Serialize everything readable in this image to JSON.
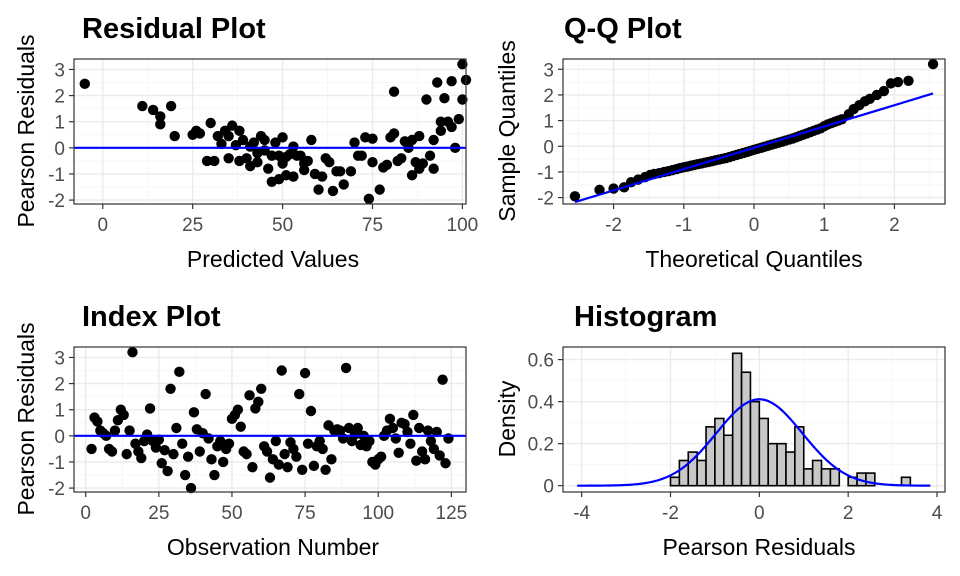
{
  "chart_data": [
    {
      "type": "scatter",
      "title": "Residual Plot",
      "xlabel": "Predicted Values",
      "ylabel": "Pearson Residuals",
      "xlim": [
        -8,
        101
      ],
      "ylim": [
        -2.15,
        3.4
      ],
      "xticks": [
        0,
        25,
        50,
        75,
        100
      ],
      "yticks": [
        -2,
        -1,
        0,
        1,
        2,
        3
      ],
      "grid": true,
      "reference_line": {
        "type": "hline",
        "y": 0,
        "color": "#0000ff"
      },
      "points": [
        [
          -5,
          2.45
        ],
        [
          11,
          1.6
        ],
        [
          14,
          1.45
        ],
        [
          16,
          0.9
        ],
        [
          16,
          1.2
        ],
        [
          19,
          1.6
        ],
        [
          20,
          0.45
        ],
        [
          25,
          0.5
        ],
        [
          26,
          0.65
        ],
        [
          27,
          0.55
        ],
        [
          29,
          -0.5
        ],
        [
          30,
          0.95
        ],
        [
          31,
          -0.5
        ],
        [
          32,
          0.45
        ],
        [
          33,
          0.15
        ],
        [
          34,
          0.65
        ],
        [
          35,
          0.45
        ],
        [
          35,
          -0.4
        ],
        [
          36,
          0.85
        ],
        [
          37,
          0.1
        ],
        [
          38,
          0.65
        ],
        [
          38,
          -0.5
        ],
        [
          39,
          0.3
        ],
        [
          40,
          -0.4
        ],
        [
          41,
          -0.7
        ],
        [
          41,
          0.05
        ],
        [
          42,
          0.2
        ],
        [
          43,
          -0.2
        ],
        [
          43,
          -0.55
        ],
        [
          44,
          0.45
        ],
        [
          45,
          0.3
        ],
        [
          45,
          -0.1
        ],
        [
          46,
          -0.8
        ],
        [
          47,
          -1.3
        ],
        [
          47,
          -0.3
        ],
        [
          48,
          0.2
        ],
        [
          49,
          -1.2
        ],
        [
          49,
          -0.3
        ],
        [
          50,
          0.4
        ],
        [
          50,
          -0.6
        ],
        [
          51,
          -0.35
        ],
        [
          51,
          -1.05
        ],
        [
          52,
          -0.25
        ],
        [
          53,
          0.05
        ],
        [
          53,
          -1.1
        ],
        [
          54,
          -0.3
        ],
        [
          55,
          -0.3
        ],
        [
          56,
          -0.6
        ],
        [
          56,
          -0.85
        ],
        [
          57,
          -0.5
        ],
        [
          58,
          0.3
        ],
        [
          59,
          -1.0
        ],
        [
          60,
          -1.6
        ],
        [
          61,
          -1.1
        ],
        [
          62,
          -0.4
        ],
        [
          63,
          -0.55
        ],
        [
          64,
          -1.65
        ],
        [
          65,
          -0.9
        ],
        [
          66,
          -0.9
        ],
        [
          67,
          -1.4
        ],
        [
          69,
          -0.9
        ],
        [
          70,
          0.2
        ],
        [
          71,
          -0.3
        ],
        [
          72,
          -0.3
        ],
        [
          73,
          0.4
        ],
        [
          74,
          -1.95
        ],
        [
          75,
          -0.55
        ],
        [
          75,
          0.35
        ],
        [
          77,
          -1.6
        ],
        [
          78,
          -0.75
        ],
        [
          79,
          -0.65
        ],
        [
          80,
          0.4
        ],
        [
          81,
          2.15
        ],
        [
          81,
          0.55
        ],
        [
          82,
          -0.5
        ],
        [
          83,
          -0.4
        ],
        [
          84,
          0.25
        ],
        [
          85,
          0.0
        ],
        [
          86,
          0.3
        ],
        [
          86,
          -1.05
        ],
        [
          87,
          -0.55
        ],
        [
          88,
          0.45
        ],
        [
          88,
          -0.8
        ],
        [
          89,
          -0.6
        ],
        [
          90,
          1.85
        ],
        [
          91,
          -0.3
        ],
        [
          92,
          0.3
        ],
        [
          92,
          -0.8
        ],
        [
          93,
          2.5
        ],
        [
          94,
          1.0
        ],
        [
          94,
          0.65
        ],
        [
          95,
          1.9
        ],
        [
          96,
          1.0
        ],
        [
          97,
          2.55
        ],
        [
          97,
          0.8
        ],
        [
          98,
          0.0
        ],
        [
          99,
          1.1
        ],
        [
          100,
          3.2
        ],
        [
          101,
          2.6
        ],
        [
          100,
          1.85
        ]
      ]
    },
    {
      "type": "scatter",
      "title": "Q-Q Plot",
      "xlabel": "Theoretical Quantiles",
      "ylabel": "Sample Quantiles",
      "xlim": [
        -2.72,
        2.72
      ],
      "ylim": [
        -2.25,
        3.4
      ],
      "xticks": [
        -2,
        -1,
        0,
        1,
        2
      ],
      "yticks": [
        -2,
        -1,
        0,
        1,
        2,
        3
      ],
      "grid": true,
      "reference_line": {
        "type": "abline",
        "intercept": -0.06,
        "slope": 0.83,
        "x_from": -2.55,
        "x_to": 2.55,
        "color": "#0000ff"
      },
      "points": [
        [
          -2.55,
          -1.95
        ],
        [
          -2.2,
          -1.7
        ],
        [
          -2.0,
          -1.65
        ],
        [
          -1.85,
          -1.6
        ],
        [
          -1.75,
          -1.4
        ],
        [
          -1.65,
          -1.3
        ],
        [
          -1.55,
          -1.2
        ],
        [
          -1.48,
          -1.12
        ],
        [
          -1.42,
          -1.08
        ],
        [
          -1.35,
          -1.05
        ],
        [
          -1.28,
          -1.0
        ],
        [
          -1.22,
          -0.97
        ],
        [
          -1.16,
          -0.93
        ],
        [
          -1.1,
          -0.89
        ],
        [
          -1.05,
          -0.85
        ],
        [
          -1.0,
          -0.82
        ],
        [
          -0.95,
          -0.79
        ],
        [
          -0.9,
          -0.76
        ],
        [
          -0.85,
          -0.73
        ],
        [
          -0.8,
          -0.7
        ],
        [
          -0.75,
          -0.67
        ],
        [
          -0.7,
          -0.64
        ],
        [
          -0.65,
          -0.61
        ],
        [
          -0.6,
          -0.58
        ],
        [
          -0.55,
          -0.55
        ],
        [
          -0.5,
          -0.52
        ],
        [
          -0.45,
          -0.49
        ],
        [
          -0.4,
          -0.46
        ],
        [
          -0.35,
          -0.42
        ],
        [
          -0.3,
          -0.38
        ],
        [
          -0.25,
          -0.34
        ],
        [
          -0.2,
          -0.3
        ],
        [
          -0.15,
          -0.26
        ],
        [
          -0.1,
          -0.22
        ],
        [
          -0.05,
          -0.18
        ],
        [
          0.0,
          -0.14
        ],
        [
          0.05,
          -0.1
        ],
        [
          0.1,
          -0.06
        ],
        [
          0.15,
          -0.02
        ],
        [
          0.2,
          0.02
        ],
        [
          0.25,
          0.06
        ],
        [
          0.3,
          0.1
        ],
        [
          0.35,
          0.14
        ],
        [
          0.4,
          0.18
        ],
        [
          0.45,
          0.22
        ],
        [
          0.5,
          0.26
        ],
        [
          0.55,
          0.3
        ],
        [
          0.6,
          0.35
        ],
        [
          0.65,
          0.4
        ],
        [
          0.7,
          0.45
        ],
        [
          0.75,
          0.5
        ],
        [
          0.8,
          0.55
        ],
        [
          0.85,
          0.6
        ],
        [
          0.9,
          0.65
        ],
        [
          0.95,
          0.7
        ],
        [
          1.0,
          0.78
        ],
        [
          1.05,
          0.85
        ],
        [
          1.1,
          0.9
        ],
        [
          1.15,
          0.95
        ],
        [
          1.2,
          1.0
        ],
        [
          1.25,
          1.05
        ],
        [
          1.35,
          1.25
        ],
        [
          1.42,
          1.45
        ],
        [
          1.5,
          1.6
        ],
        [
          1.58,
          1.75
        ],
        [
          1.65,
          1.85
        ],
        [
          1.75,
          2.0
        ],
        [
          1.85,
          2.15
        ],
        [
          1.95,
          2.45
        ],
        [
          2.05,
          2.5
        ],
        [
          2.2,
          2.55
        ],
        [
          2.55,
          3.2
        ]
      ]
    },
    {
      "type": "scatter",
      "title": "Index Plot",
      "xlabel": "Observation Number",
      "ylabel": "Pearson Residuals",
      "xlim": [
        -4,
        130
      ],
      "ylim": [
        -2.15,
        3.4
      ],
      "xticks": [
        0,
        25,
        50,
        75,
        100,
        125
      ],
      "yticks": [
        -2,
        -1,
        0,
        1,
        2,
        3
      ],
      "grid": true,
      "reference_line": {
        "type": "hline",
        "y": 0,
        "color": "#0000ff"
      },
      "points": [
        [
          2,
          -0.5
        ],
        [
          3,
          0.7
        ],
        [
          4,
          0.55
        ],
        [
          5,
          0.2
        ],
        [
          6,
          0.1
        ],
        [
          7,
          0.0
        ],
        [
          8,
          -0.5
        ],
        [
          9,
          -0.6
        ],
        [
          10,
          0.2
        ],
        [
          11,
          0.6
        ],
        [
          12,
          1.0
        ],
        [
          13,
          0.8
        ],
        [
          14,
          -0.7
        ],
        [
          15,
          0.2
        ],
        [
          16,
          3.2
        ],
        [
          17,
          -0.3
        ],
        [
          18,
          -0.6
        ],
        [
          19,
          -0.85
        ],
        [
          20,
          -0.2
        ],
        [
          21,
          0.05
        ],
        [
          22,
          1.05
        ],
        [
          23,
          -0.2
        ],
        [
          24,
          -0.45
        ],
        [
          25,
          -0.15
        ],
        [
          26,
          -1.05
        ],
        [
          27,
          -0.55
        ],
        [
          28,
          -1.35
        ],
        [
          29,
          1.8
        ],
        [
          30,
          -0.7
        ],
        [
          31,
          0.3
        ],
        [
          32,
          2.45
        ],
        [
          33,
          -0.3
        ],
        [
          34,
          -1.5
        ],
        [
          35,
          -0.8
        ],
        [
          36,
          -2.0
        ],
        [
          37,
          0.9
        ],
        [
          38,
          0.25
        ],
        [
          39,
          -0.6
        ],
        [
          40,
          0.1
        ],
        [
          41,
          1.6
        ],
        [
          42,
          -0.1
        ],
        [
          43,
          -0.9
        ],
        [
          44,
          -1.5
        ],
        [
          45,
          -0.4
        ],
        [
          46,
          -0.2
        ],
        [
          47,
          -1.0
        ],
        [
          48,
          -0.5
        ],
        [
          49,
          -0.3
        ],
        [
          50,
          0.65
        ],
        [
          51,
          0.8
        ],
        [
          52,
          1.0
        ],
        [
          53,
          0.35
        ],
        [
          54,
          -0.6
        ],
        [
          55,
          -0.7
        ],
        [
          56,
          1.55
        ],
        [
          57,
          -1.2
        ],
        [
          58,
          1.05
        ],
        [
          59,
          1.3
        ],
        [
          60,
          1.8
        ],
        [
          61,
          -0.4
        ],
        [
          62,
          -0.6
        ],
        [
          63,
          -1.6
        ],
        [
          64,
          -0.9
        ],
        [
          65,
          -0.2
        ],
        [
          66,
          -1.1
        ],
        [
          67,
          2.5
        ],
        [
          68,
          -0.7
        ],
        [
          69,
          -1.2
        ],
        [
          70,
          -0.25
        ],
        [
          71,
          -0.5
        ],
        [
          72,
          -0.8
        ],
        [
          73,
          1.6
        ],
        [
          74,
          -1.3
        ],
        [
          75,
          2.4
        ],
        [
          76,
          -0.3
        ],
        [
          77,
          0.95
        ],
        [
          78,
          -1.15
        ],
        [
          79,
          -0.4
        ],
        [
          80,
          -0.2
        ],
        [
          81,
          -0.5
        ],
        [
          82,
          -1.3
        ],
        [
          83,
          0.4
        ],
        [
          84,
          -0.9
        ],
        [
          85,
          0.2
        ],
        [
          86,
          0.25
        ],
        [
          87,
          0.2
        ],
        [
          88,
          -0.1
        ],
        [
          89,
          2.6
        ],
        [
          90,
          0.3
        ],
        [
          91,
          -0.2
        ],
        [
          92,
          0.05
        ],
        [
          93,
          0.3
        ],
        [
          94,
          -0.35
        ],
        [
          95,
          0.0
        ],
        [
          96,
          -0.4
        ],
        [
          97,
          -0.2
        ],
        [
          98,
          -1.0
        ],
        [
          99,
          -1.1
        ],
        [
          100,
          -0.9
        ],
        [
          101,
          -0.8
        ],
        [
          102,
          0.0
        ],
        [
          103,
          0.2
        ],
        [
          104,
          0.65
        ],
        [
          105,
          0.3
        ],
        [
          106,
          -0.1
        ],
        [
          107,
          -0.65
        ],
        [
          108,
          0.5
        ],
        [
          109,
          0.45
        ],
        [
          110,
          0.15
        ],
        [
          111,
          -0.3
        ],
        [
          112,
          0.8
        ],
        [
          113,
          -0.95
        ],
        [
          114,
          0.3
        ],
        [
          115,
          -0.6
        ],
        [
          116,
          -0.9
        ],
        [
          117,
          0.2
        ],
        [
          118,
          -0.2
        ],
        [
          119,
          -0.5
        ],
        [
          120,
          0.15
        ],
        [
          121,
          -0.75
        ],
        [
          122,
          2.15
        ],
        [
          123,
          -1.05
        ],
        [
          124,
          -0.1
        ]
      ]
    },
    {
      "type": "bar",
      "subtype": "histogram_with_density",
      "title": "Histogram",
      "xlabel": "Pearson Residuals",
      "ylabel": "Density",
      "xlim": [
        -4.42,
        4.18
      ],
      "ylim": [
        -0.03,
        0.66
      ],
      "xticks": [
        -4,
        -2,
        0,
        2,
        4
      ],
      "yticks": [
        0.0,
        0.2,
        0.4,
        0.6
      ],
      "grid": true,
      "bin_width": 0.2,
      "bins": [
        [
          -2.0,
          -1.8,
          0.04
        ],
        [
          -1.8,
          -1.6,
          0.12
        ],
        [
          -1.6,
          -1.4,
          0.16
        ],
        [
          -1.4,
          -1.2,
          0.12
        ],
        [
          -1.2,
          -1.0,
          0.28
        ],
        [
          -1.0,
          -0.8,
          0.32
        ],
        [
          -0.8,
          -0.6,
          0.24
        ],
        [
          -0.6,
          -0.4,
          0.63
        ],
        [
          -0.4,
          -0.2,
          0.54
        ],
        [
          -0.2,
          0.0,
          0.4
        ],
        [
          0.0,
          0.2,
          0.32
        ],
        [
          0.2,
          0.4,
          0.2
        ],
        [
          0.4,
          0.6,
          0.2
        ],
        [
          0.6,
          0.8,
          0.16
        ],
        [
          0.8,
          1.0,
          0.28
        ],
        [
          1.0,
          1.2,
          0.08
        ],
        [
          1.2,
          1.4,
          0.12
        ],
        [
          1.4,
          1.6,
          0.08
        ],
        [
          1.6,
          1.8,
          0.08
        ],
        [
          2.0,
          2.2,
          0.04
        ],
        [
          2.2,
          2.4,
          0.06
        ],
        [
          2.4,
          2.6,
          0.06
        ],
        [
          3.2,
          3.4,
          0.04
        ]
      ],
      "density_curve": {
        "type": "normal",
        "mean": 0.0,
        "sd": 0.97,
        "x_from": -4.1,
        "x_to": 3.85,
        "color": "#0000ff"
      },
      "bar_fill": "#c8c8c8",
      "bar_stroke": "#000000"
    }
  ]
}
